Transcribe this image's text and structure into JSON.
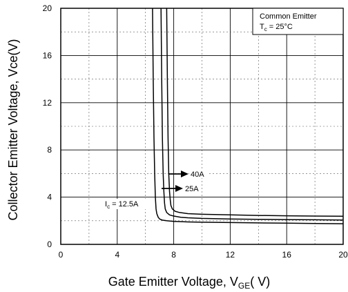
{
  "chart_data": {
    "type": "line",
    "xlabel": "Gate Emitter Voltage, V",
    "xlabel_sub": "GE",
    "xlabel_suffix": "( V)",
    "ylabel": "Collector Emitter Voltage, Vce(V)",
    "xlim": [
      0,
      20
    ],
    "ylim": [
      0,
      20
    ],
    "x_ticks": [
      "0",
      "4",
      "8",
      "12",
      "16",
      "20"
    ],
    "y_ticks": [
      "0",
      "4",
      "8",
      "12",
      "16",
      "20"
    ],
    "grid": true,
    "legend_box": {
      "line1": "Common Emitter",
      "line2_main": "T",
      "line2_sub": "c",
      "line2_rest": " = 25°C",
      "placement": "top-right"
    },
    "annotations": {
      "ic_main": "I",
      "ic_sub": "c",
      "ic_rest": " = 12.5A",
      "a25": "25A",
      "a40": "40A"
    },
    "series": [
      {
        "name": "Ic = 12.5A",
        "x": [
          6.5,
          6.55,
          6.6,
          6.65,
          6.7,
          6.75,
          6.8,
          6.9,
          7.0,
          7.2,
          7.5,
          8,
          9,
          10,
          12,
          14,
          16,
          18,
          20
        ],
        "y": [
          20,
          14,
          9,
          6,
          4,
          3,
          2.6,
          2.3,
          2.15,
          2.05,
          2.0,
          1.95,
          1.9,
          1.88,
          1.85,
          1.82,
          1.8,
          1.77,
          1.75
        ]
      },
      {
        "name": "25A",
        "x": [
          7.1,
          7.15,
          7.2,
          7.25,
          7.3,
          7.35,
          7.4,
          7.5,
          7.7,
          8,
          8.5,
          9,
          10,
          12,
          14,
          16,
          18,
          20
        ],
        "y": [
          20,
          14,
          9,
          6,
          4.5,
          3.5,
          3.0,
          2.7,
          2.5,
          2.4,
          2.3,
          2.25,
          2.2,
          2.15,
          2.12,
          2.1,
          2.08,
          2.06
        ]
      },
      {
        "name": "40A",
        "x": [
          7.5,
          7.55,
          7.6,
          7.65,
          7.7,
          7.75,
          7.8,
          7.9,
          8.1,
          8.4,
          9,
          10,
          12,
          14,
          16,
          18,
          20
        ],
        "y": [
          20,
          14,
          9,
          6,
          4.5,
          3.8,
          3.3,
          3.0,
          2.8,
          2.7,
          2.6,
          2.55,
          2.5,
          2.45,
          2.42,
          2.4,
          2.38
        ]
      }
    ]
  }
}
